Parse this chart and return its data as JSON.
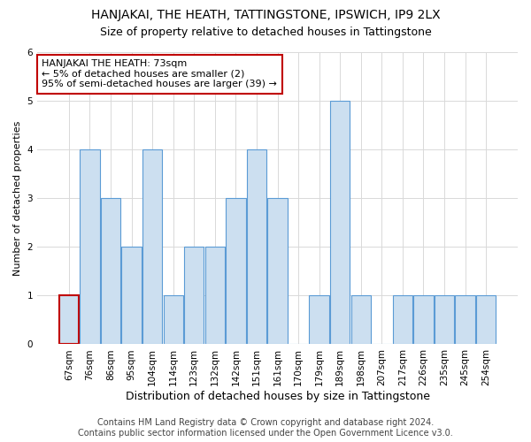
{
  "title": "HANJAKAI, THE HEATH, TATTINGSTONE, IPSWICH, IP9 2LX",
  "subtitle": "Size of property relative to detached houses in Tattingstone",
  "xlabel": "Distribution of detached houses by size in Tattingstone",
  "ylabel": "Number of detached properties",
  "categories": [
    "67sqm",
    "76sqm",
    "86sqm",
    "95sqm",
    "104sqm",
    "114sqm",
    "123sqm",
    "132sqm",
    "142sqm",
    "151sqm",
    "161sqm",
    "170sqm",
    "179sqm",
    "189sqm",
    "198sqm",
    "207sqm",
    "217sqm",
    "226sqm",
    "235sqm",
    "245sqm",
    "254sqm"
  ],
  "values": [
    1,
    4,
    3,
    2,
    4,
    1,
    2,
    2,
    3,
    4,
    3,
    0,
    1,
    5,
    1,
    0,
    1,
    1,
    1,
    1,
    1
  ],
  "highlight_index": 0,
  "bar_color": "#ccdff0",
  "bar_edge_color": "#5b9bd5",
  "highlight_bar_edge_color": "#c00000",
  "annotation_box_edge_color": "#c00000",
  "annotation_text": "HANJAKAI THE HEATH: 73sqm\n← 5% of detached houses are smaller (2)\n95% of semi-detached houses are larger (39) →",
  "annotation_fontsize": 8,
  "footer": "Contains HM Land Registry data © Crown copyright and database right 2024.\nContains public sector information licensed under the Open Government Licence v3.0.",
  "ylim": [
    0,
    6
  ],
  "yticks": [
    0,
    1,
    2,
    3,
    4,
    5,
    6
  ],
  "grid_color": "#d9d9d9",
  "title_fontsize": 10,
  "subtitle_fontsize": 9,
  "xlabel_fontsize": 9,
  "ylabel_fontsize": 8,
  "tick_fontsize": 7.5,
  "footer_fontsize": 7
}
